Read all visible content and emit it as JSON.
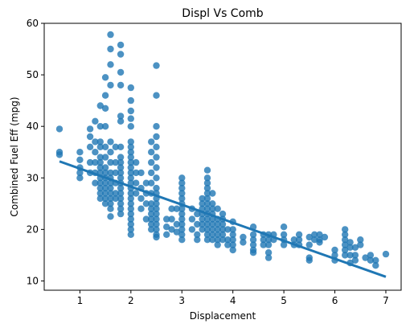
{
  "chart_data": {
    "type": "scatter",
    "title": "Displ Vs Comb",
    "xlabel": "Displacement",
    "ylabel": "Combined Fuel Eff (mpg)",
    "xlim": [
      0.3,
      7.3
    ],
    "ylim": [
      8.2,
      60
    ],
    "xticks": [
      1,
      2,
      3,
      4,
      5,
      6,
      7
    ],
    "yticks": [
      10,
      20,
      30,
      40,
      50,
      60
    ],
    "grid": false,
    "legend": "none",
    "series": [
      {
        "point_color": "#1f77b4",
        "points": [
          [
            0.6,
            39.5
          ],
          [
            0.6,
            35.0
          ],
          [
            0.6,
            34.5
          ],
          [
            1.0,
            35.0
          ],
          [
            1.0,
            33.5
          ],
          [
            1.0,
            32.0
          ],
          [
            1.0,
            31.0
          ],
          [
            1.0,
            30.0
          ],
          [
            1.2,
            39.5
          ],
          [
            1.2,
            38.0
          ],
          [
            1.2,
            36.0
          ],
          [
            1.2,
            33.0
          ],
          [
            1.2,
            31.0
          ],
          [
            1.3,
            41.0
          ],
          [
            1.3,
            37.0
          ],
          [
            1.3,
            35.0
          ],
          [
            1.3,
            33.0
          ],
          [
            1.3,
            31.0
          ],
          [
            1.3,
            29.0
          ],
          [
            1.4,
            44.0
          ],
          [
            1.4,
            40.0
          ],
          [
            1.4,
            37.0
          ],
          [
            1.4,
            36.0
          ],
          [
            1.4,
            34.0
          ],
          [
            1.4,
            33.0
          ],
          [
            1.4,
            32.0
          ],
          [
            1.4,
            31.0
          ],
          [
            1.4,
            30.0
          ],
          [
            1.4,
            29.0
          ],
          [
            1.4,
            28.0
          ],
          [
            1.4,
            27.0
          ],
          [
            1.4,
            26.0
          ],
          [
            1.5,
            49.5
          ],
          [
            1.5,
            46.0
          ],
          [
            1.5,
            43.5
          ],
          [
            1.5,
            40.0
          ],
          [
            1.5,
            36.0
          ],
          [
            1.5,
            34.0
          ],
          [
            1.5,
            32.0
          ],
          [
            1.5,
            31.0
          ],
          [
            1.5,
            30.0
          ],
          [
            1.5,
            29.0
          ],
          [
            1.5,
            28.0
          ],
          [
            1.5,
            27.0
          ],
          [
            1.5,
            26.0
          ],
          [
            1.5,
            25.0
          ],
          [
            1.6,
            57.8
          ],
          [
            1.6,
            55.0
          ],
          [
            1.6,
            52.0
          ],
          [
            1.6,
            48.0
          ],
          [
            1.6,
            37.0
          ],
          [
            1.6,
            35.0
          ],
          [
            1.6,
            33.0
          ],
          [
            1.6,
            31.0
          ],
          [
            1.6,
            30.0
          ],
          [
            1.6,
            29.0
          ],
          [
            1.6,
            28.0
          ],
          [
            1.6,
            27.0
          ],
          [
            1.6,
            26.0
          ],
          [
            1.6,
            25.0
          ],
          [
            1.6,
            24.0
          ],
          [
            1.6,
            22.5
          ],
          [
            1.7,
            36.0
          ],
          [
            1.7,
            33.0
          ],
          [
            1.7,
            31.0
          ],
          [
            1.7,
            29.0
          ],
          [
            1.7,
            27.0
          ],
          [
            1.7,
            26.0
          ],
          [
            1.8,
            55.8
          ],
          [
            1.8,
            54.0
          ],
          [
            1.8,
            50.5
          ],
          [
            1.8,
            48.0
          ],
          [
            1.8,
            42.0
          ],
          [
            1.8,
            41.0
          ],
          [
            1.8,
            36.0
          ],
          [
            1.8,
            34.0
          ],
          [
            1.8,
            33.0
          ],
          [
            1.8,
            32.0
          ],
          [
            1.8,
            31.0
          ],
          [
            1.8,
            30.0
          ],
          [
            1.8,
            29.0
          ],
          [
            1.8,
            28.0
          ],
          [
            1.8,
            27.0
          ],
          [
            1.8,
            26.0
          ],
          [
            1.8,
            25.0
          ],
          [
            1.8,
            24.0
          ],
          [
            1.8,
            23.0
          ],
          [
            2.0,
            47.5
          ],
          [
            2.0,
            45.0
          ],
          [
            2.0,
            43.0
          ],
          [
            2.0,
            41.5
          ],
          [
            2.0,
            40.0
          ],
          [
            2.0,
            37.0
          ],
          [
            2.0,
            36.0
          ],
          [
            2.0,
            35.0
          ],
          [
            2.0,
            34.0
          ],
          [
            2.0,
            33.0
          ],
          [
            2.0,
            32.0
          ],
          [
            2.0,
            31.0
          ],
          [
            2.0,
            30.0
          ],
          [
            2.0,
            29.0
          ],
          [
            2.0,
            28.0
          ],
          [
            2.0,
            27.0
          ],
          [
            2.0,
            26.0
          ],
          [
            2.0,
            25.0
          ],
          [
            2.0,
            24.0
          ],
          [
            2.0,
            23.0
          ],
          [
            2.0,
            22.0
          ],
          [
            2.0,
            21.0
          ],
          [
            2.0,
            20.0
          ],
          [
            2.0,
            19.0
          ],
          [
            2.1,
            33.0
          ],
          [
            2.1,
            31.0
          ],
          [
            2.1,
            29.0
          ],
          [
            2.1,
            27.0
          ],
          [
            2.2,
            31.0
          ],
          [
            2.2,
            28.0
          ],
          [
            2.2,
            26.0
          ],
          [
            2.2,
            24.0
          ],
          [
            2.3,
            29.0
          ],
          [
            2.3,
            27.0
          ],
          [
            2.3,
            25.0
          ],
          [
            2.3,
            22.0
          ],
          [
            2.4,
            37.0
          ],
          [
            2.4,
            35.0
          ],
          [
            2.4,
            33.0
          ],
          [
            2.4,
            31.0
          ],
          [
            2.4,
            29.0
          ],
          [
            2.4,
            27.0
          ],
          [
            2.4,
            25.0
          ],
          [
            2.4,
            24.0
          ],
          [
            2.4,
            23.0
          ],
          [
            2.4,
            22.0
          ],
          [
            2.4,
            21.0
          ],
          [
            2.4,
            20.0
          ],
          [
            2.5,
            51.8
          ],
          [
            2.5,
            46.0
          ],
          [
            2.5,
            40.0
          ],
          [
            2.5,
            38.0
          ],
          [
            2.5,
            36.0
          ],
          [
            2.5,
            34.0
          ],
          [
            2.5,
            32.0
          ],
          [
            2.5,
            30.0
          ],
          [
            2.5,
            28.0
          ],
          [
            2.5,
            27.0
          ],
          [
            2.5,
            26.0
          ],
          [
            2.5,
            25.0
          ],
          [
            2.5,
            24.0
          ],
          [
            2.5,
            23.0
          ],
          [
            2.5,
            22.0
          ],
          [
            2.5,
            21.0
          ],
          [
            2.5,
            20.0
          ],
          [
            2.5,
            19.0
          ],
          [
            2.5,
            18.5
          ],
          [
            2.7,
            22.0
          ],
          [
            2.7,
            20.5
          ],
          [
            2.7,
            19.0
          ],
          [
            2.8,
            24.0
          ],
          [
            2.8,
            22.0
          ],
          [
            2.8,
            20.0
          ],
          [
            2.9,
            24.0
          ],
          [
            2.9,
            21.0
          ],
          [
            2.9,
            19.5
          ],
          [
            3.0,
            30.0
          ],
          [
            3.0,
            29.0
          ],
          [
            3.0,
            28.0
          ],
          [
            3.0,
            27.0
          ],
          [
            3.0,
            26.0
          ],
          [
            3.0,
            25.0
          ],
          [
            3.0,
            24.0
          ],
          [
            3.0,
            23.0
          ],
          [
            3.0,
            22.0
          ],
          [
            3.0,
            21.0
          ],
          [
            3.0,
            20.0
          ],
          [
            3.0,
            19.0
          ],
          [
            3.0,
            18.0
          ],
          [
            3.2,
            24.0
          ],
          [
            3.2,
            22.0
          ],
          [
            3.2,
            20.0
          ],
          [
            3.3,
            23.0
          ],
          [
            3.3,
            21.0
          ],
          [
            3.3,
            19.0
          ],
          [
            3.3,
            18.0
          ],
          [
            3.4,
            26.0
          ],
          [
            3.4,
            25.0
          ],
          [
            3.4,
            24.0
          ],
          [
            3.4,
            23.0
          ],
          [
            3.4,
            22.0
          ],
          [
            3.4,
            21.0
          ],
          [
            3.4,
            20.0
          ],
          [
            3.5,
            31.5
          ],
          [
            3.5,
            30.0
          ],
          [
            3.5,
            29.0
          ],
          [
            3.5,
            28.0
          ],
          [
            3.5,
            27.0
          ],
          [
            3.5,
            26.0
          ],
          [
            3.5,
            25.0
          ],
          [
            3.5,
            24.0
          ],
          [
            3.5,
            23.0
          ],
          [
            3.5,
            22.0
          ],
          [
            3.5,
            21.0
          ],
          [
            3.5,
            20.0
          ],
          [
            3.5,
            19.0
          ],
          [
            3.5,
            18.0
          ],
          [
            3.6,
            27.0
          ],
          [
            3.6,
            25.0
          ],
          [
            3.6,
            24.0
          ],
          [
            3.6,
            23.0
          ],
          [
            3.6,
            22.0
          ],
          [
            3.6,
            21.0
          ],
          [
            3.6,
            20.0
          ],
          [
            3.6,
            19.0
          ],
          [
            3.6,
            18.0
          ],
          [
            3.7,
            24.0
          ],
          [
            3.7,
            22.0
          ],
          [
            3.7,
            21.0
          ],
          [
            3.7,
            20.0
          ],
          [
            3.7,
            19.0
          ],
          [
            3.7,
            18.0
          ],
          [
            3.7,
            17.0
          ],
          [
            3.8,
            23.0
          ],
          [
            3.8,
            22.0
          ],
          [
            3.8,
            21.0
          ],
          [
            3.8,
            20.0
          ],
          [
            3.8,
            19.0
          ],
          [
            3.8,
            18.0
          ],
          [
            3.9,
            20.0
          ],
          [
            3.9,
            18.0
          ],
          [
            3.9,
            17.0
          ],
          [
            4.0,
            21.5
          ],
          [
            4.0,
            20.0
          ],
          [
            4.0,
            19.0
          ],
          [
            4.0,
            18.0
          ],
          [
            4.0,
            17.0
          ],
          [
            4.0,
            16.0
          ],
          [
            4.2,
            18.5
          ],
          [
            4.2,
            17.5
          ],
          [
            4.4,
            20.5
          ],
          [
            4.4,
            19.0
          ],
          [
            4.4,
            18.0
          ],
          [
            4.4,
            17.0
          ],
          [
            4.4,
            16.0
          ],
          [
            4.4,
            15.5
          ],
          [
            4.6,
            19.0
          ],
          [
            4.6,
            18.0
          ],
          [
            4.6,
            17.0
          ],
          [
            4.7,
            19.0
          ],
          [
            4.7,
            18.0
          ],
          [
            4.7,
            17.0
          ],
          [
            4.7,
            15.5
          ],
          [
            4.7,
            14.5
          ],
          [
            4.8,
            19.0
          ],
          [
            4.8,
            18.0
          ],
          [
            5.0,
            20.5
          ],
          [
            5.0,
            19.0
          ],
          [
            5.0,
            18.0
          ],
          [
            5.0,
            17.0
          ],
          [
            5.2,
            18.0
          ],
          [
            5.2,
            17.0
          ],
          [
            5.3,
            19.0
          ],
          [
            5.3,
            18.0
          ],
          [
            5.3,
            17.0
          ],
          [
            5.5,
            18.5
          ],
          [
            5.5,
            17.0
          ],
          [
            5.5,
            14.5
          ],
          [
            5.5,
            14.0
          ],
          [
            5.6,
            19.0
          ],
          [
            5.6,
            18.0
          ],
          [
            5.7,
            19.0
          ],
          [
            5.7,
            18.0
          ],
          [
            5.7,
            17.5
          ],
          [
            5.8,
            18.5
          ],
          [
            6.0,
            16.0
          ],
          [
            6.0,
            15.0
          ],
          [
            6.0,
            14.0
          ],
          [
            6.2,
            20.0
          ],
          [
            6.2,
            19.0
          ],
          [
            6.2,
            18.0
          ],
          [
            6.2,
            17.0
          ],
          [
            6.2,
            16.0
          ],
          [
            6.2,
            15.0
          ],
          [
            6.3,
            17.5
          ],
          [
            6.3,
            16.5
          ],
          [
            6.3,
            15.0
          ],
          [
            6.3,
            13.5
          ],
          [
            6.4,
            16.5
          ],
          [
            6.4,
            15.0
          ],
          [
            6.4,
            14.0
          ],
          [
            6.5,
            18.0
          ],
          [
            6.5,
            17.0
          ],
          [
            6.6,
            14.5
          ],
          [
            6.7,
            15.0
          ],
          [
            6.7,
            14.0
          ],
          [
            6.8,
            14.0
          ],
          [
            6.8,
            13.0
          ],
          [
            7.0,
            15.2
          ]
        ],
        "regression_line": {
          "line_color": "#1f77b4",
          "x": [
            0.6,
            7.0
          ],
          "y": [
            33.2,
            10.8
          ]
        }
      }
    ]
  }
}
